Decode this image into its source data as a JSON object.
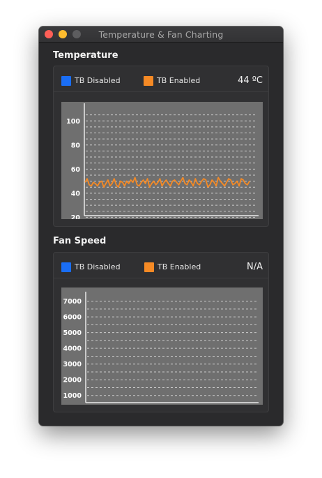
{
  "window": {
    "title": "Temperature & Fan Charting"
  },
  "colors": {
    "tb_disabled": "#1a6ef5",
    "tb_enabled": "#f58a25",
    "plot_bg": "#6f6f6f",
    "grid": "#dcdcdc"
  },
  "temperature": {
    "title": "Temperature",
    "legend": {
      "disabled_label": "TB Disabled",
      "enabled_label": "TB Enabled"
    },
    "readout": "44 ºC",
    "chart_data": {
      "type": "line",
      "ylim": [
        15,
        110
      ],
      "yticks": [
        "100",
        "80",
        "60",
        "40",
        "20"
      ],
      "ytick_values": [
        100,
        80,
        60,
        40,
        20
      ],
      "grid_values": [
        105,
        100,
        95,
        90,
        85,
        80,
        75,
        70,
        65,
        60,
        55,
        50,
        45,
        40,
        35,
        30,
        25,
        20
      ],
      "grid": true,
      "series": [
        {
          "values": [
            49,
            52,
            47,
            46,
            49,
            48,
            46,
            49,
            50,
            45,
            48,
            51,
            46,
            48,
            52,
            47,
            45,
            50,
            49,
            46,
            50,
            48,
            51,
            49,
            53,
            47,
            46,
            49,
            51,
            48,
            52,
            45,
            48,
            50,
            47,
            49,
            52,
            46,
            49,
            51,
            48,
            46,
            50,
            51,
            49,
            47,
            50,
            53,
            48,
            47,
            51,
            49,
            46,
            52,
            48,
            47,
            50,
            52,
            51,
            45,
            47,
            51,
            49,
            46,
            53,
            50,
            48,
            46,
            49,
            52,
            51,
            47,
            48,
            50,
            46,
            52,
            51,
            48,
            47,
            50
          ]
        }
      ]
    }
  },
  "fan": {
    "title": "Fan Speed",
    "legend": {
      "disabled_label": "TB Disabled",
      "enabled_label": "TB Enabled"
    },
    "readout": "N/A",
    "chart_data": {
      "type": "line",
      "ylim": [
        500,
        7250
      ],
      "yticks": [
        "7000",
        "6000",
        "5000",
        "4000",
        "3000",
        "2000",
        "1000"
      ],
      "ytick_values": [
        7000,
        6000,
        5000,
        4000,
        3000,
        2000,
        1000
      ],
      "grid_values": [
        7000,
        6500,
        6000,
        5500,
        5000,
        4500,
        4000,
        3500,
        3000,
        2500,
        2000,
        1500,
        1000
      ],
      "grid": true,
      "series": []
    }
  }
}
